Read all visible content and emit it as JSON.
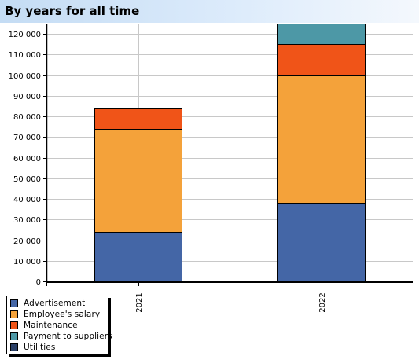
{
  "header": {
    "title": "By years for all time"
  },
  "chart_data": {
    "type": "bar",
    "stacked": true,
    "categories": [
      "2021",
      "2022"
    ],
    "series": [
      {
        "name": "Advertisement",
        "color": "#4466a6",
        "values": [
          24000,
          38000
        ]
      },
      {
        "name": "Employee's salary",
        "color": "#f4a23a",
        "values": [
          50000,
          62000
        ]
      },
      {
        "name": "Maintenance",
        "color": "#f05418",
        "values": [
          10000,
          15000
        ]
      },
      {
        "name": "Payment to suppliers",
        "color": "#4d98a6",
        "values": [
          0,
          10000
        ]
      },
      {
        "name": "Utilities",
        "color": "#2a3f66",
        "values": [
          0,
          0
        ]
      }
    ],
    "ylim": [
      0,
      125000
    ],
    "yticks": [
      0,
      10000,
      20000,
      30000,
      40000,
      50000,
      60000,
      70000,
      80000,
      90000,
      100000,
      110000,
      120000
    ],
    "ytick_labels": [
      "0",
      "10 000",
      "20 000",
      "30 000",
      "40 000",
      "50 000",
      "60 000",
      "70 000",
      "80 000",
      "90 000",
      "100 000",
      "110 000",
      "120 000"
    ],
    "grid": true,
    "legend": "bottom-left",
    "xlabel": "",
    "ylabel": ""
  }
}
